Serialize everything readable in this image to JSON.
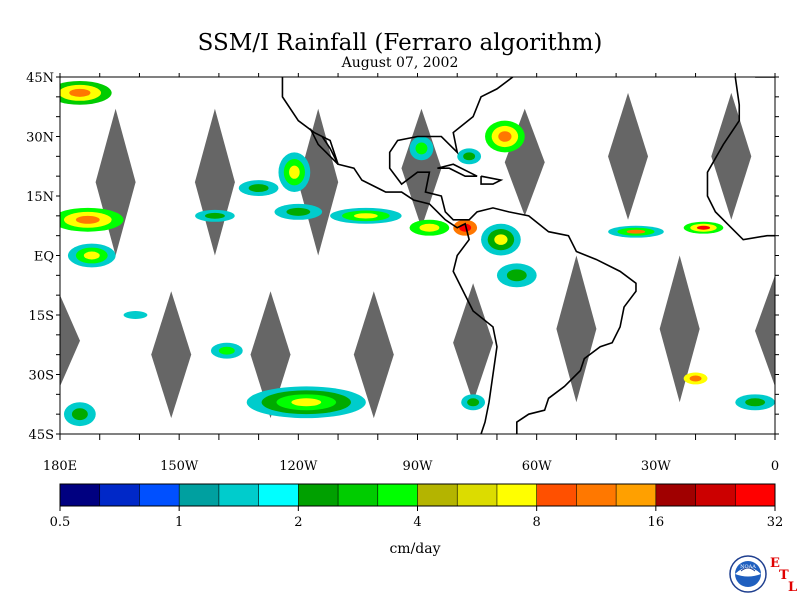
{
  "title": "SSM/I Rainfall (Ferraro algorithm)",
  "subtitle": "August 07, 2002",
  "map": {
    "lat_labels": [
      "45N",
      "30N",
      "15N",
      "EQ",
      "15S",
      "30S",
      "45S"
    ],
    "lat_values": [
      45,
      30,
      15,
      0,
      -15,
      -30,
      -45
    ],
    "lon_labels": [
      "180E",
      "150W",
      "120W",
      "90W",
      "60W",
      "30W",
      "0"
    ],
    "lon_values": [
      -180,
      -150,
      -120,
      -90,
      -60,
      -30,
      0
    ],
    "extent": {
      "lon_min": -180,
      "lon_max": 0,
      "lat_min": -45,
      "lat_max": 45
    },
    "no_data_color": "#666666",
    "coast_color": "#000000",
    "no_data_swaths": [
      {
        "lon": -166,
        "lat_top": 37,
        "lat_bottom": 0
      },
      {
        "lon": -141,
        "lat_top": 37,
        "lat_bottom": 0
      },
      {
        "lon": -115,
        "lat_top": 37,
        "lat_bottom": 0
      },
      {
        "lon": -89,
        "lat_top": 37,
        "lat_bottom": 7
      },
      {
        "lon": -63,
        "lat_top": 37,
        "lat_bottom": 10
      },
      {
        "lon": -37,
        "lat_top": 41,
        "lat_bottom": 9
      },
      {
        "lon": -11,
        "lat_top": 41,
        "lat_bottom": 9
      },
      {
        "lon": -180,
        "lat_top": -10,
        "lat_bottom": -33
      },
      {
        "lon": -152,
        "lat_top": -9,
        "lat_bottom": -41
      },
      {
        "lon": -127,
        "lat_top": -9,
        "lat_bottom": -41
      },
      {
        "lon": -101,
        "lat_top": -9,
        "lat_bottom": -41
      },
      {
        "lon": -76,
        "lat_top": -7,
        "lat_bottom": -37
      },
      {
        "lon": -50,
        "lat_top": 0,
        "lat_bottom": -37
      },
      {
        "lon": -24,
        "lat_top": 0,
        "lat_bottom": -37
      },
      {
        "lon": 0,
        "lat_top": -5,
        "lat_bottom": -33
      }
    ],
    "rain_cells": [
      {
        "lon": -175,
        "lat": 41,
        "rx": 8,
        "ry": 3,
        "colors": [
          "#00cc00",
          "#ffff00",
          "#ff7700"
        ]
      },
      {
        "lon": -121,
        "lat": 21,
        "rx": 4,
        "ry": 5,
        "colors": [
          "#00cccc",
          "#00ff00",
          "#ffff00"
        ]
      },
      {
        "lon": -130,
        "lat": 17,
        "rx": 5,
        "ry": 2,
        "colors": [
          "#00cccc",
          "#00aa00"
        ]
      },
      {
        "lon": -173,
        "lat": 9,
        "rx": 9,
        "ry": 3,
        "colors": [
          "#00ff00",
          "#ffff00",
          "#ff7700"
        ]
      },
      {
        "lon": -172,
        "lat": 0,
        "rx": 6,
        "ry": 3,
        "colors": [
          "#00cccc",
          "#00ff00",
          "#ffff00"
        ]
      },
      {
        "lon": -141,
        "lat": 10,
        "rx": 5,
        "ry": 1.5,
        "colors": [
          "#00cccc",
          "#00aa00"
        ]
      },
      {
        "lon": -120,
        "lat": 11,
        "rx": 6,
        "ry": 2,
        "colors": [
          "#00cccc",
          "#00aa00"
        ]
      },
      {
        "lon": -103,
        "lat": 10,
        "rx": 9,
        "ry": 2,
        "colors": [
          "#00cccc",
          "#00ff00",
          "#ffff00"
        ]
      },
      {
        "lon": -87,
        "lat": 7,
        "rx": 5,
        "ry": 2,
        "colors": [
          "#00ff00",
          "#ffff00"
        ]
      },
      {
        "lon": -78,
        "lat": 7,
        "rx": 3,
        "ry": 2,
        "colors": [
          "#ff7700",
          "#ff0000"
        ]
      },
      {
        "lon": -68,
        "lat": 30,
        "rx": 5,
        "ry": 4,
        "colors": [
          "#00ff00",
          "#ffff00",
          "#ff7700"
        ]
      },
      {
        "lon": -77,
        "lat": 25,
        "rx": 3,
        "ry": 2,
        "colors": [
          "#00cccc",
          "#00aa00"
        ]
      },
      {
        "lon": -89,
        "lat": 27,
        "rx": 3,
        "ry": 3,
        "colors": [
          "#00cccc",
          "#00ff00"
        ]
      },
      {
        "lon": -69,
        "lat": 4,
        "rx": 5,
        "ry": 4,
        "colors": [
          "#00cccc",
          "#00aa00",
          "#ffff00"
        ]
      },
      {
        "lon": -65,
        "lat": -5,
        "rx": 5,
        "ry": 3,
        "colors": [
          "#00cccc",
          "#00aa00"
        ]
      },
      {
        "lon": -35,
        "lat": 6,
        "rx": 7,
        "ry": 1.5,
        "colors": [
          "#00cccc",
          "#00ff00",
          "#ff7700"
        ]
      },
      {
        "lon": -18,
        "lat": 7,
        "rx": 5,
        "ry": 1.5,
        "colors": [
          "#00ff00",
          "#ffff00",
          "#ff0000"
        ]
      },
      {
        "lon": -138,
        "lat": -24,
        "rx": 4,
        "ry": 2,
        "colors": [
          "#00cccc",
          "#00ff00"
        ]
      },
      {
        "lon": -118,
        "lat": -37,
        "rx": 15,
        "ry": 4,
        "colors": [
          "#00cccc",
          "#00aa00",
          "#00ff00",
          "#ffff00"
        ]
      },
      {
        "lon": -175,
        "lat": -40,
        "rx": 4,
        "ry": 3,
        "colors": [
          "#00cccc",
          "#00aa00"
        ]
      },
      {
        "lon": -20,
        "lat": -31,
        "rx": 3,
        "ry": 1.5,
        "colors": [
          "#ffff00",
          "#ff7700"
        ]
      },
      {
        "lon": -5,
        "lat": -37,
        "rx": 5,
        "ry": 2,
        "colors": [
          "#00cccc",
          "#00aa00"
        ]
      },
      {
        "lon": -161,
        "lat": -15,
        "rx": 3,
        "ry": 1,
        "colors": [
          "#00cccc"
        ]
      },
      {
        "lon": -76,
        "lat": -37,
        "rx": 3,
        "ry": 2,
        "colors": [
          "#00cccc",
          "#00aa00"
        ]
      }
    ]
  },
  "colorbar": {
    "title": "cm/day",
    "tick_labels": [
      "0.5",
      "1",
      "2",
      "4",
      "8",
      "16",
      "32"
    ],
    "colors": [
      "#000080",
      "#0028c8",
      "#0050ff",
      "#00a0a0",
      "#00cccc",
      "#00ffff",
      "#00a000",
      "#00cc00",
      "#00ff00",
      "#b4b400",
      "#dcdc00",
      "#ffff00",
      "#ff5000",
      "#ff7800",
      "#ffa000",
      "#a00000",
      "#cc0000",
      "#ff0000"
    ]
  },
  "logo": {
    "text": "NOAA",
    "letters": [
      "E",
      "T",
      "L"
    ]
  }
}
